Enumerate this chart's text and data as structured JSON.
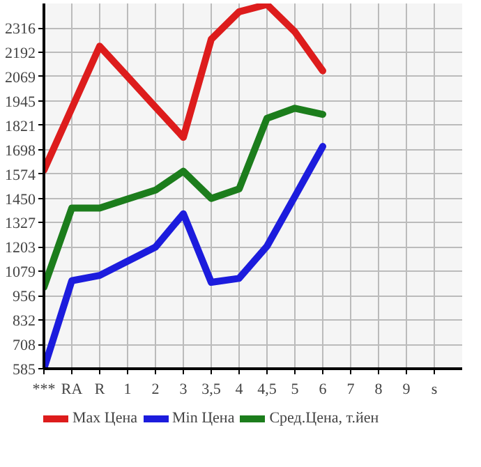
{
  "chart_data": {
    "type": "line",
    "categories": [
      "***",
      "RA",
      "R",
      "1",
      "2",
      "3",
      "3,5",
      "4",
      "4,5",
      "5",
      "6",
      "7",
      "8",
      "9",
      "s"
    ],
    "series": [
      {
        "name": "Max Цена",
        "color": "#dd1c1c",
        "values": [
          1593,
          1908,
          2223,
          2069,
          1914,
          1760,
          2258,
          2398,
          2435,
          2296,
          2098,
          null,
          null,
          null,
          null
        ]
      },
      {
        "name": "Min Цена",
        "color": "#1c1cdd",
        "values": [
          585,
          1032,
          1059,
          1131,
          1203,
          1372,
          1024,
          1044,
          1207,
          1460,
          1714,
          null,
          null,
          null,
          null
        ]
      },
      {
        "name": "Сред.Цена, т.йен",
        "color": "#1c7d1c",
        "values": [
          999,
          1401,
          1401,
          1447,
          1492,
          1588,
          1450,
          1498,
          1857,
          1908,
          1877,
          null,
          null,
          null,
          null
        ]
      }
    ],
    "ylim": [
      585,
      2440
    ],
    "yticks": [
      585,
      708,
      832,
      956,
      1079,
      1203,
      1327,
      1450,
      1574,
      1698,
      1821,
      1945,
      2069,
      2192,
      2316
    ],
    "grid": true,
    "legend": "bottom",
    "marker": "none",
    "line_style": "solid"
  }
}
